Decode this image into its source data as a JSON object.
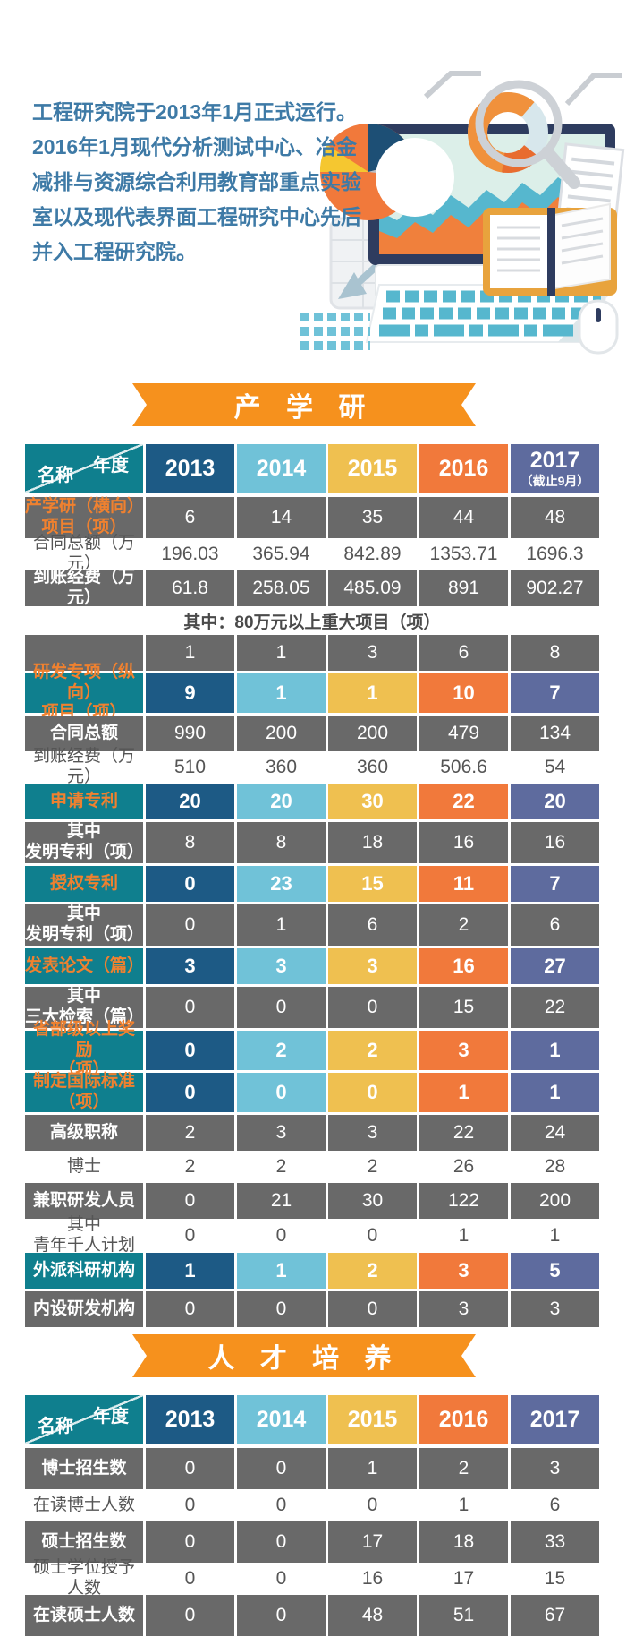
{
  "colors": {
    "banner": "#f6911d",
    "teal": "#0f7f8e",
    "dark_gray": "#696969",
    "intro_blue": "#3e7aa6",
    "label_orange": "#f0812f",
    "white_row_text": "#555555",
    "year_colors": [
      "#1d5a85",
      "#70c2d8",
      "#efc050",
      "#f1793b",
      "#5e6b9e"
    ]
  },
  "intro": {
    "lines": [
      "工程研究院于2013年1月正式运行。",
      "2016年1月现代分析测试中心、冶金",
      "减排与资源综合利用教育部重点实验",
      "室以及现代表界面工程研究中心先后",
      "并入工程研究院。"
    ]
  },
  "illustration": {
    "icons": [
      "monitor-icon",
      "area-chart-icon",
      "pie-chart-icon",
      "magnifier-chart-icon",
      "keyboard-icon",
      "book-icon",
      "mouse-icon",
      "spreadsheet-icon",
      "papers-icon"
    ]
  },
  "section1": {
    "banner": "产 学 研"
  },
  "table1": {
    "corner": {
      "top": "年度",
      "bottom": "名称"
    },
    "years": [
      "2013",
      "2014",
      "2015",
      "2016",
      "2017"
    ],
    "year_note": "（截止9月）",
    "rows": [
      {
        "label": "产学研（横向）",
        "label2": "项目（项）",
        "type": "gray",
        "label_style": "orange",
        "values": [
          6,
          14,
          35,
          44,
          48
        ]
      },
      {
        "label": "合同总额（万元）",
        "type": "white",
        "values": [
          196.03,
          365.94,
          842.89,
          1353.71,
          1696.3
        ]
      },
      {
        "label": "到账经费（万元）",
        "type": "gray",
        "values": [
          61.8,
          258.05,
          485.09,
          891,
          902.27
        ]
      },
      {
        "type": "note",
        "text": "其中：80万元以上重大项目（项）"
      },
      {
        "label": "",
        "type": "gray",
        "values": [
          1,
          1,
          3,
          6,
          8
        ]
      },
      {
        "label": "研发专项（纵向）",
        "label2": "项目（项）",
        "type": "colored",
        "values": [
          9,
          1,
          1,
          10,
          7
        ]
      },
      {
        "label": "合同总额",
        "type": "gray",
        "values": [
          990,
          200,
          200,
          479,
          134
        ]
      },
      {
        "label": "到账经费（万元）",
        "type": "white",
        "values": [
          510,
          360,
          360,
          506.6,
          54
        ]
      },
      {
        "label": "申请专利",
        "type": "colored",
        "values": [
          20,
          20,
          30,
          22,
          20
        ]
      },
      {
        "label": "其中",
        "label2": "发明专利（项）",
        "type": "gray",
        "values": [
          8,
          8,
          18,
          16,
          16
        ]
      },
      {
        "label": "授权专利",
        "type": "colored",
        "values": [
          0,
          23,
          15,
          11,
          7
        ]
      },
      {
        "label": "其中",
        "label2": "发明专利（项）",
        "type": "gray",
        "values": [
          0,
          1,
          6,
          2,
          6
        ]
      },
      {
        "label": "发表论文（篇）",
        "type": "colored",
        "values": [
          3,
          3,
          3,
          16,
          27
        ]
      },
      {
        "label": "其中",
        "label2": "三大检索（篇）",
        "type": "gray",
        "values": [
          0,
          0,
          0,
          15,
          22
        ]
      },
      {
        "label": "省部级以上奖励",
        "label2": "（项）",
        "type": "colored",
        "values": [
          0,
          2,
          2,
          3,
          1
        ]
      },
      {
        "label": "制定国际标准",
        "label2": "（项）",
        "type": "colored",
        "values": [
          0,
          0,
          0,
          1,
          1
        ]
      },
      {
        "label": "高级职称",
        "type": "gray",
        "values": [
          2,
          3,
          3,
          22,
          24
        ]
      },
      {
        "label": "博士",
        "type": "white",
        "values": [
          2,
          2,
          2,
          26,
          28
        ]
      },
      {
        "label": "兼职研发人员",
        "type": "gray",
        "values": [
          0,
          21,
          30,
          122,
          200
        ]
      },
      {
        "label": "其中",
        "label2": "青年千人计划",
        "type": "white",
        "values": [
          0,
          0,
          0,
          1,
          1
        ]
      },
      {
        "label": "外派科研机构",
        "type": "colored",
        "label_style": "white",
        "values": [
          1,
          1,
          2,
          3,
          5
        ]
      },
      {
        "label": "内设研发机构",
        "type": "gray",
        "values": [
          0,
          0,
          0,
          3,
          3
        ]
      }
    ]
  },
  "section2": {
    "banner": "人 才 培 养"
  },
  "table2": {
    "corner": {
      "top": "年度",
      "bottom": "名称"
    },
    "years": [
      "2013",
      "2014",
      "2015",
      "2016",
      "2017"
    ],
    "rows": [
      {
        "label": "博士招生数",
        "type": "gray",
        "values": [
          0,
          0,
          1,
          2,
          3
        ]
      },
      {
        "label": "在读博士人数",
        "type": "white",
        "values": [
          0,
          0,
          0,
          1,
          6
        ]
      },
      {
        "label": "硕士招生数",
        "type": "gray",
        "values": [
          0,
          0,
          17,
          18,
          33
        ]
      },
      {
        "label": "硕士学位授予人数",
        "type": "white",
        "values": [
          0,
          0,
          16,
          17,
          15
        ]
      },
      {
        "label": "在读硕士人数",
        "type": "gray",
        "values": [
          0,
          0,
          48,
          51,
          67
        ]
      }
    ]
  }
}
